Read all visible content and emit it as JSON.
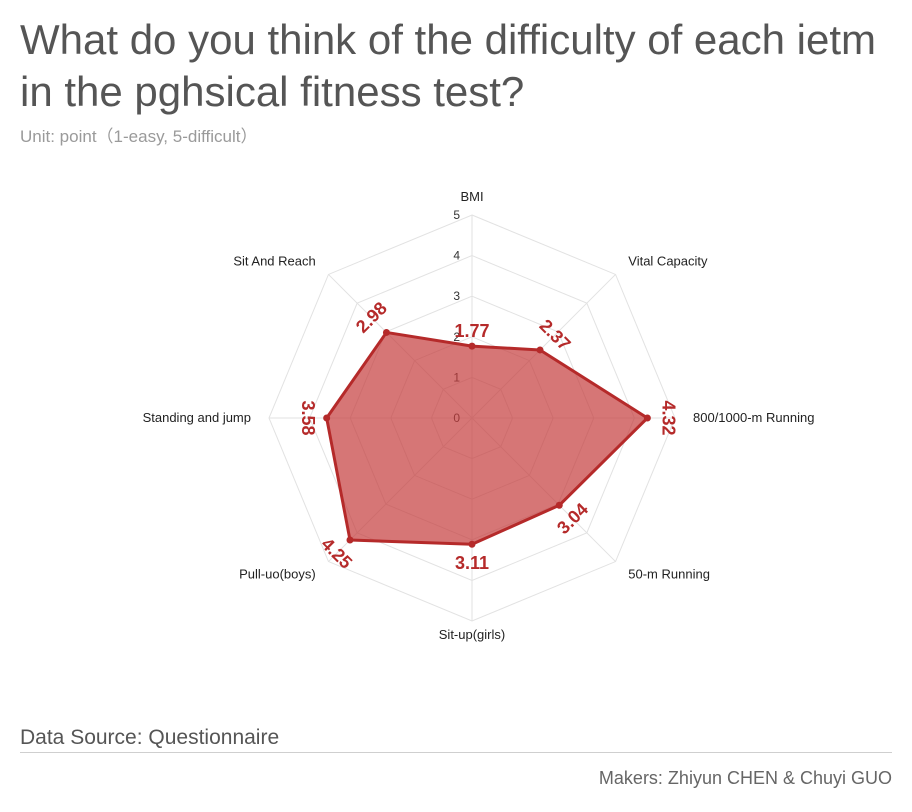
{
  "title": "What do you think of the difficulty of each ietm in the pghsical fitness test?",
  "subtitle": "Unit: point（1-easy, 5-difficult）",
  "source": "Data Source: Questionnaire",
  "makers": "Makers: Zhiyun CHEN & Chuyi GUO",
  "colors": {
    "fill": "#c43c3c",
    "stroke": "#b52a2a",
    "label": "#b52a2a",
    "grid": "#e2e2e2"
  },
  "chart_data": {
    "type": "radar",
    "categories": [
      "BMI",
      "Vital Capacity",
      "800/1000-m Running",
      "50-m Running",
      "Sit-up(girls)",
      "Pull-uo(boys)",
      "Standing and jump",
      "Sit And Reach"
    ],
    "values": [
      1.77,
      2.37,
      4.32,
      3.04,
      3.11,
      4.25,
      3.58,
      2.98
    ],
    "value_labels": [
      "1.77",
      "2.37",
      "4.32",
      "3.04",
      "3.11",
      "4.25",
      "3.58",
      "2.98"
    ],
    "range": [
      0,
      5
    ],
    "ticks": [
      "0",
      "1",
      "2",
      "3",
      "4",
      "5"
    ],
    "grid": true
  }
}
